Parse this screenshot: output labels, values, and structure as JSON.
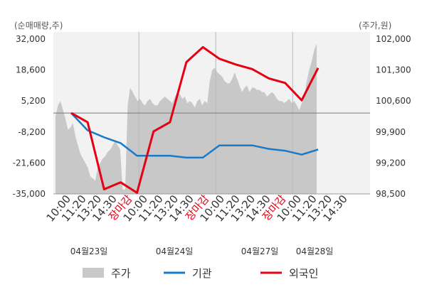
{
  "chart_data": {
    "type": "line",
    "left_unit": "(순매매량,주)",
    "right_unit": "(주가,원)",
    "left_axis": {
      "ticks": [
        32000,
        18600,
        5200,
        -8200,
        -21600,
        -35000
      ],
      "tick_labels": [
        "32,000",
        "18,600",
        "5,200",
        "-8,200",
        "-21,600",
        "-35,000"
      ],
      "range": [
        -35000,
        32000
      ]
    },
    "right_axis": {
      "ticks": [
        102000,
        101300,
        100600,
        99900,
        99200,
        98500
      ],
      "tick_labels": [
        "102,000",
        "101,300",
        "100,600",
        "99,900",
        "99,200",
        "98,500"
      ],
      "range": [
        98500,
        102000
      ]
    },
    "x_tick_labels": [
      "10:00",
      "11:20",
      "13:20",
      "14:30",
      "장마감",
      "10:00",
      "11:20",
      "13:20",
      "14:30",
      "장마감",
      "10:00",
      "11:20",
      "13:20",
      "14:30",
      "장마감",
      "10:00",
      "11:20",
      "13:20",
      "14:30"
    ],
    "red_tick_labels": [
      "장마감"
    ],
    "date_labels": [
      "04월23일",
      "04월24일",
      "04월27일",
      "04월28일"
    ],
    "zero_line": 0,
    "series": [
      {
        "name": "주가",
        "color": "#c8c8c8",
        "axis": "right",
        "values": [
          100250,
          100500,
          100600,
          100400,
          100200,
          99950,
          100000,
          100100,
          99800,
          99600,
          99400,
          99300,
          99200,
          99100,
          98900,
          98850,
          98800,
          99100,
          99200,
          99300,
          99350,
          99450,
          99500,
          99600,
          99700,
          99600,
          99500,
          98600,
          98600,
          100500,
          100900,
          100800,
          100700,
          100600,
          100650,
          100550,
          100500,
          100600,
          100650,
          100550,
          100500,
          100500,
          100600,
          100650,
          100700,
          100650,
          100600,
          100550,
          100700,
          100800,
          100750,
          100650,
          100700,
          100550,
          100600,
          100550,
          100450,
          100600,
          100650,
          100500,
          100600,
          100550,
          101050,
          101300,
          101350,
          101250,
          101200,
          101150,
          101050,
          101000,
          101000,
          101100,
          101250,
          101100,
          100950,
          100800,
          100900,
          100950,
          100800,
          100900,
          100900,
          100850,
          100850,
          100800,
          100800,
          100700,
          100750,
          100800,
          100750,
          100650,
          100600,
          100600,
          100550,
          100600,
          100650,
          100550,
          100600,
          100500,
          100400,
          100550,
          100700,
          101050,
          101300,
          101500,
          101750,
          101900
        ]
      },
      {
        "name": "기관",
        "color": "#1a7ac8",
        "axis": "left",
        "values": [
          0,
          -7500,
          -10500,
          -13000,
          -18500,
          -18500,
          -18500,
          -19300,
          -19300,
          -14000,
          -14000,
          -14000,
          -15500,
          -16300,
          -18000,
          -15800
        ]
      },
      {
        "name": "외국인",
        "color": "#e60012",
        "axis": "left",
        "values": [
          0,
          -4000,
          -33000,
          -30000,
          -34500,
          -8000,
          -4000,
          22000,
          28500,
          23500,
          21000,
          19000,
          15000,
          13000,
          5500,
          19500
        ]
      }
    ],
    "legend": [
      "주가",
      "기관",
      "외국인"
    ],
    "legend_position": "bottom",
    "grid": "vertical day separators"
  }
}
